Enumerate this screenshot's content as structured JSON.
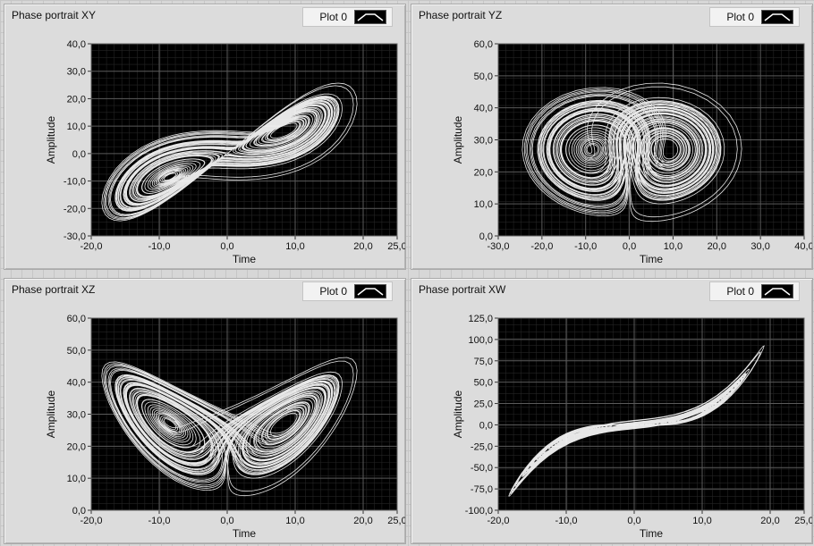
{
  "colors": {
    "plot_background": "#000000",
    "grid": "#5a5a5a",
    "trace": "#ffffff",
    "panel": "#dcdcdc"
  },
  "panels": [
    {
      "title": "Phase portrait XY",
      "legend_label": "Plot 0",
      "legend_icon": "line-icon"
    },
    {
      "title": "Phase portrait YZ",
      "legend_label": "Plot 0",
      "legend_icon": "line-icon"
    },
    {
      "title": "Phase portrait XZ",
      "legend_label": "Plot 0",
      "legend_icon": "line-icon"
    },
    {
      "title": "Phase portrait XW",
      "legend_label": "Plot 0",
      "legend_icon": "line-icon"
    }
  ],
  "chart_data": [
    {
      "type": "line",
      "title": "Phase portrait XY",
      "xlabel": "Time",
      "ylabel": "Amplitude",
      "xlim": [
        -20,
        25
      ],
      "ylim": [
        -30,
        40
      ],
      "xticks": [
        "-20,0",
        "-10,0",
        "0,0",
        "10,0",
        "20,0",
        "25,0"
      ],
      "xtick_values": [
        -20,
        -10,
        0,
        10,
        20,
        25
      ],
      "yticks": [
        "-30,0",
        "-20,0",
        "-10,0",
        "0,0",
        "10,0",
        "20,0",
        "30,0",
        "40,0"
      ],
      "ytick_values": [
        -30,
        -20,
        -10,
        0,
        10,
        20,
        30,
        40
      ],
      "grid": true,
      "legend": "top-right",
      "series": [
        {
          "name": "Plot 0",
          "x_source": "x",
          "y_source": "y",
          "description": "Lorenz attractor trajectory, two lobes centered near (-8.5,-8.5) and (8.5,8.5)"
        }
      ]
    },
    {
      "type": "line",
      "title": "Phase portrait YZ",
      "xlabel": "Time",
      "ylabel": "Amplitude",
      "xlim": [
        -30,
        40
      ],
      "ylim": [
        0,
        60
      ],
      "xticks": [
        "-30,0",
        "-20,0",
        "-10,0",
        "0,0",
        "10,0",
        "20,0",
        "30,0",
        "40,0"
      ],
      "xtick_values": [
        -30,
        -20,
        -10,
        0,
        10,
        20,
        30,
        40
      ],
      "yticks": [
        "0,0",
        "10,0",
        "20,0",
        "30,0",
        "40,0",
        "50,0",
        "60,0"
      ],
      "ytick_values": [
        0,
        10,
        20,
        30,
        40,
        50,
        60
      ],
      "grid": true,
      "legend": "top-right",
      "series": [
        {
          "name": "Plot 0",
          "x_source": "y",
          "y_source": "z",
          "description": "Lorenz attractor trajectory, lobes centered near (-8.5,27) and (8.5,27)"
        }
      ]
    },
    {
      "type": "line",
      "title": "Phase portrait XZ",
      "xlabel": "Time",
      "ylabel": "Amplitude",
      "xlim": [
        -20,
        25
      ],
      "ylim": [
        0,
        60
      ],
      "xticks": [
        "-20,0",
        "-10,0",
        "0,0",
        "10,0",
        "20,0",
        "25,0"
      ],
      "xtick_values": [
        -20,
        -10,
        0,
        10,
        20,
        25
      ],
      "yticks": [
        "0,0",
        "10,0",
        "20,0",
        "30,0",
        "40,0",
        "50,0",
        "60,0"
      ],
      "ytick_values": [
        0,
        10,
        20,
        30,
        40,
        50,
        60
      ],
      "grid": true,
      "legend": "top-right",
      "series": [
        {
          "name": "Plot 0",
          "x_source": "x",
          "y_source": "z",
          "description": "Lorenz butterfly, lobes centered near (-8.5,27) and (8.5,27)"
        }
      ]
    },
    {
      "type": "line",
      "title": "Phase portrait XW",
      "xlabel": "Time",
      "ylabel": "Amplitude",
      "xlim": [
        -20,
        25
      ],
      "ylim": [
        -100,
        125
      ],
      "xticks": [
        "-20,0",
        "-10,0",
        "0,0",
        "10,0",
        "20,0",
        "25,0"
      ],
      "xtick_values": [
        -20,
        -10,
        0,
        10,
        20,
        25
      ],
      "yticks": [
        "-100,0",
        "-75,0",
        "-50,0",
        "-25,0",
        "0,0",
        "25,0",
        "50,0",
        "75,0",
        "100,0",
        "125,0"
      ],
      "ytick_values": [
        -100,
        -75,
        -50,
        -25,
        0,
        25,
        50,
        75,
        100,
        125
      ],
      "grid": true,
      "legend": "top-right",
      "series": [
        {
          "name": "Plot 0",
          "x_source": "x",
          "y_source": "w",
          "description": "Cubic-like trajectory from about (-19,-83) to (22,112)"
        }
      ]
    }
  ]
}
